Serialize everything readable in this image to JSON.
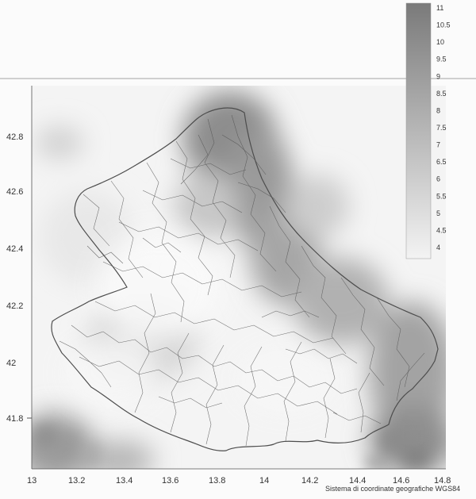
{
  "map": {
    "type": "heatmap",
    "x_ticks": [
      "13",
      "13.2",
      "13.4",
      "13.6",
      "13.8",
      "14",
      "14.2",
      "14.4",
      "14.6",
      "14.8"
    ],
    "y_ticks": [
      "42.8",
      "42.6",
      "42.4",
      "42.2",
      "42",
      "41.8"
    ],
    "colorbar_ticks": [
      "11",
      "10.5",
      "10",
      "9.5",
      "9",
      "8.5",
      "8",
      "7.5",
      "7",
      "6.5",
      "6",
      "5.5",
      "5",
      "4.5",
      "4"
    ],
    "coordinate_note": "Sistema di coordinate geografiche WGS84",
    "colors": {
      "high": "#7a7a7a",
      "low": "#f5f5f5",
      "border": "#555555"
    }
  }
}
